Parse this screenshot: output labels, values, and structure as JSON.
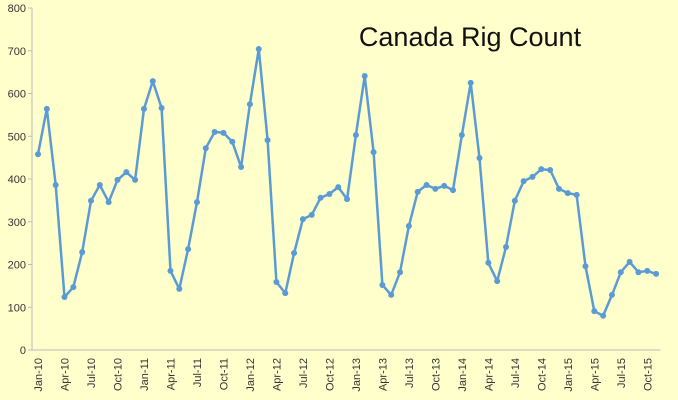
{
  "chart_data": {
    "type": "line",
    "title": "Canada Rig Count",
    "categories": [
      "Jan-10",
      null,
      null,
      "Apr-10",
      null,
      null,
      "Jul-10",
      null,
      null,
      "Oct-10",
      null,
      null,
      "Jan-11",
      null,
      null,
      "Apr-11",
      null,
      null,
      "Jul-11",
      null,
      null,
      "Oct-11",
      null,
      null,
      "Jan-12",
      null,
      null,
      "Apr-12",
      null,
      null,
      "Jul-12",
      null,
      null,
      "Oct-12",
      null,
      null,
      "Jan-13",
      null,
      null,
      "Apr-13",
      null,
      null,
      "Jul-13",
      null,
      null,
      "Oct-13",
      null,
      null,
      "Jan-14",
      null,
      null,
      "Apr-14",
      null,
      null,
      "Jul-14",
      null,
      null,
      "Oct-14",
      null,
      null,
      "Jan-15",
      null,
      null,
      "Apr-15",
      null,
      null,
      "Jul-15",
      null,
      null,
      "Oct-15",
      null
    ],
    "series": [
      {
        "name": "Canada Rig Count",
        "color": "#5b9bd5",
        "values": [
          458,
          564,
          386,
          124,
          147,
          229,
          349,
          386,
          346,
          398,
          416,
          398,
          564,
          629,
          566,
          185,
          143,
          236,
          346,
          472,
          510,
          508,
          487,
          428,
          575,
          704,
          491,
          159,
          133,
          227,
          306,
          316,
          356,
          365,
          381,
          353,
          503,
          641,
          463,
          152,
          129,
          182,
          290,
          370,
          386,
          377,
          384,
          374,
          503,
          625,
          449,
          204,
          161,
          241,
          349,
          395,
          405,
          423,
          421,
          377,
          367,
          363,
          196,
          91,
          80,
          129,
          182,
          206,
          182,
          185,
          178
        ]
      }
    ],
    "ylim": [
      0,
      800
    ],
    "yticks": [
      0,
      100,
      200,
      300,
      400,
      500,
      600,
      700,
      800
    ],
    "grid": false
  }
}
